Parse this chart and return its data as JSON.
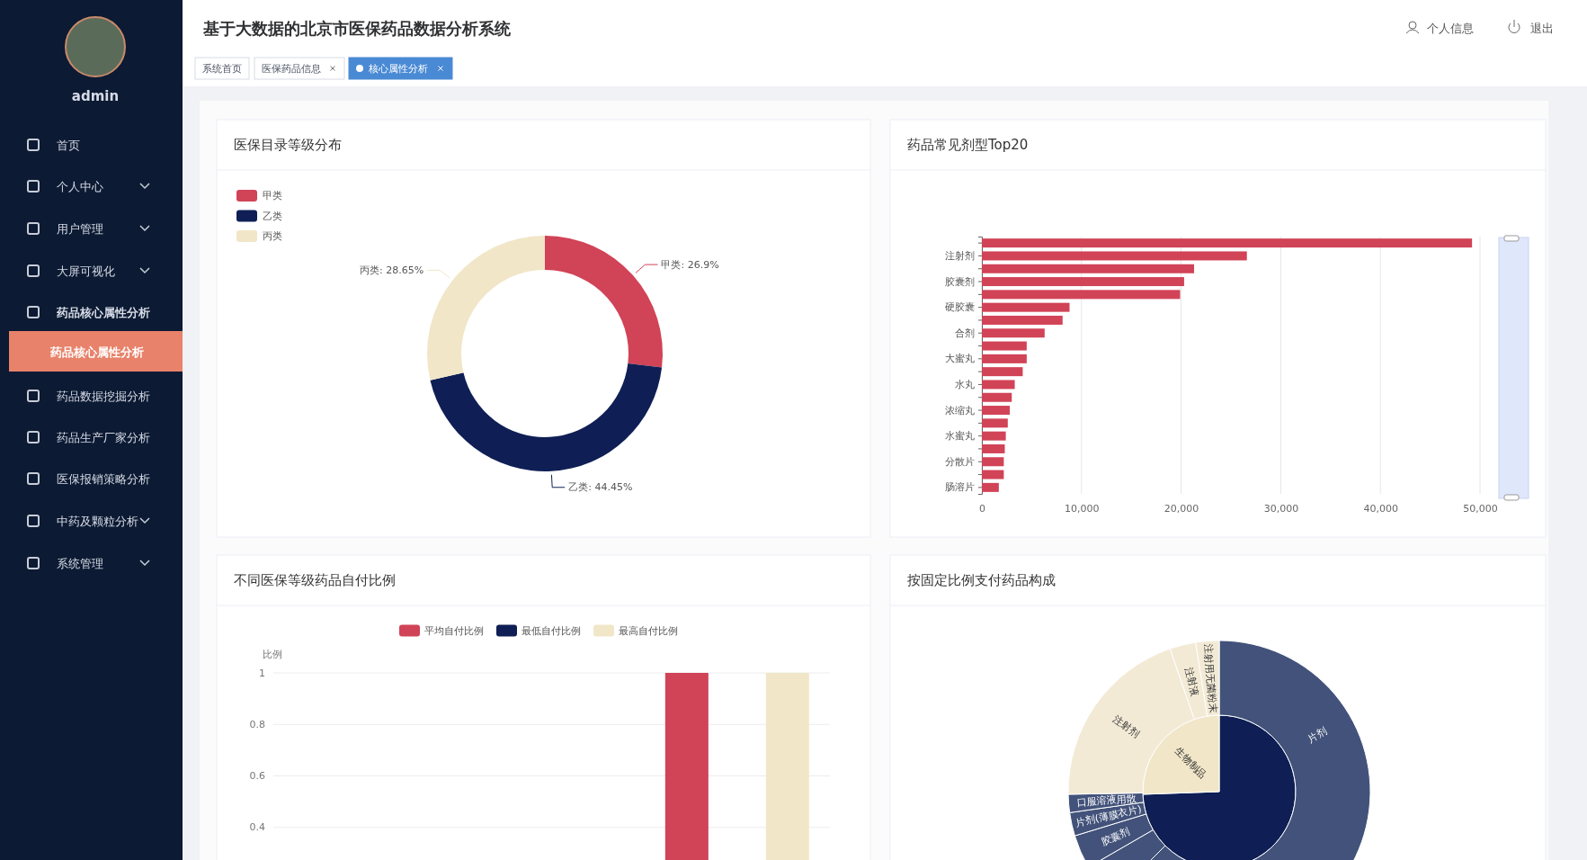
{
  "chart_data": [
    {
      "type": "other",
      "title": "基于大数据的北京市医保药品数据分析系统",
      "annotations": [
        "admin",
        "首页",
        "个人中心",
        "用户管理",
        "大屏可视化",
        "药品核心属性分析",
        "药品核心属性分析",
        "药品数据挖掘分析",
        "药品生产厂家分析",
        "医保报销策略分析",
        "中药及颗粒分析",
        "系统管理",
        "个人信息",
        "退出",
        "系统首页",
        "医保药品信息",
        "核心属性分析"
      ]
    },
    {
      "type": "donut",
      "title": "医保目录等级分布",
      "categories": [
        "甲类",
        "乙类",
        "丙类"
      ],
      "values": [
        26.9,
        44.45,
        28.65
      ],
      "colors": [
        "#d14357",
        "#0f1f55",
        "#f1e6c8"
      ],
      "value_labels": [
        "甲类: 26.9%",
        "乙类: 44.45%",
        "丙类: 28.65%"
      ],
      "legend": "top left"
    },
    {
      "type": "bar",
      "orientation": "horizontal",
      "title": "药品常见剂型Top20",
      "categories": [
        null,
        "注射剂",
        null,
        "胶囊剂",
        null,
        "硬胶囊",
        null,
        "合剂",
        null,
        "大蜜丸",
        null,
        "水丸",
        null,
        "浓缩丸",
        null,
        "水蜜丸",
        null,
        "分散片",
        null,
        "肠溶片"
      ],
      "values": [
        49200,
        26600,
        21300,
        20300,
        19900,
        8800,
        8100,
        6300,
        4500,
        4500,
        4100,
        3300,
        3000,
        2800,
        2600,
        2400,
        2300,
        2200,
        2200,
        1700
      ],
      "color": "#d14357",
      "xlim": [
        0,
        50000
      ],
      "xticks": [
        0,
        {
          "value": 10000,
          "label": "10,000"
        },
        {
          "value": 20000,
          "label": "20,000"
        },
        {
          "value": 30000,
          "label": "30,000"
        },
        {
          "value": 40000,
          "label": "40,000"
        },
        {
          "value": 50000,
          "label": "50,000"
        }
      ],
      "grid": "x"
    },
    {
      "type": "bar",
      "title": "不同医保等级药品自付比例",
      "ylabel": "比例",
      "categories": [
        null,
        null,
        null
      ],
      "series": [
        {
          "name": "平均自付比例",
          "color": "#d14357",
          "values": [
            null,
            null,
            1
          ]
        },
        {
          "name": "最低自付比例",
          "color": "#0f1f55",
          "values": [
            null,
            null,
            null
          ]
        },
        {
          "name": "最高自付比例",
          "color": "#f1e6c8",
          "values": [
            null,
            null,
            1
          ]
        }
      ],
      "ylim": [
        0.27,
        1
      ],
      "yticks": [
        0.4,
        0.6,
        0.8,
        1
      ],
      "grid": "y",
      "legend": "top"
    },
    {
      "type": "other",
      "title": "按固定比例支付药品构成",
      "annotations": [
        "片剂",
        "生物制品",
        "注射剂",
        "注射液",
        "注射用无菌粉末",
        "口服溶液用散",
        "片剂(薄膜衣片)",
        "胶囊剂"
      ]
    }
  ]
}
